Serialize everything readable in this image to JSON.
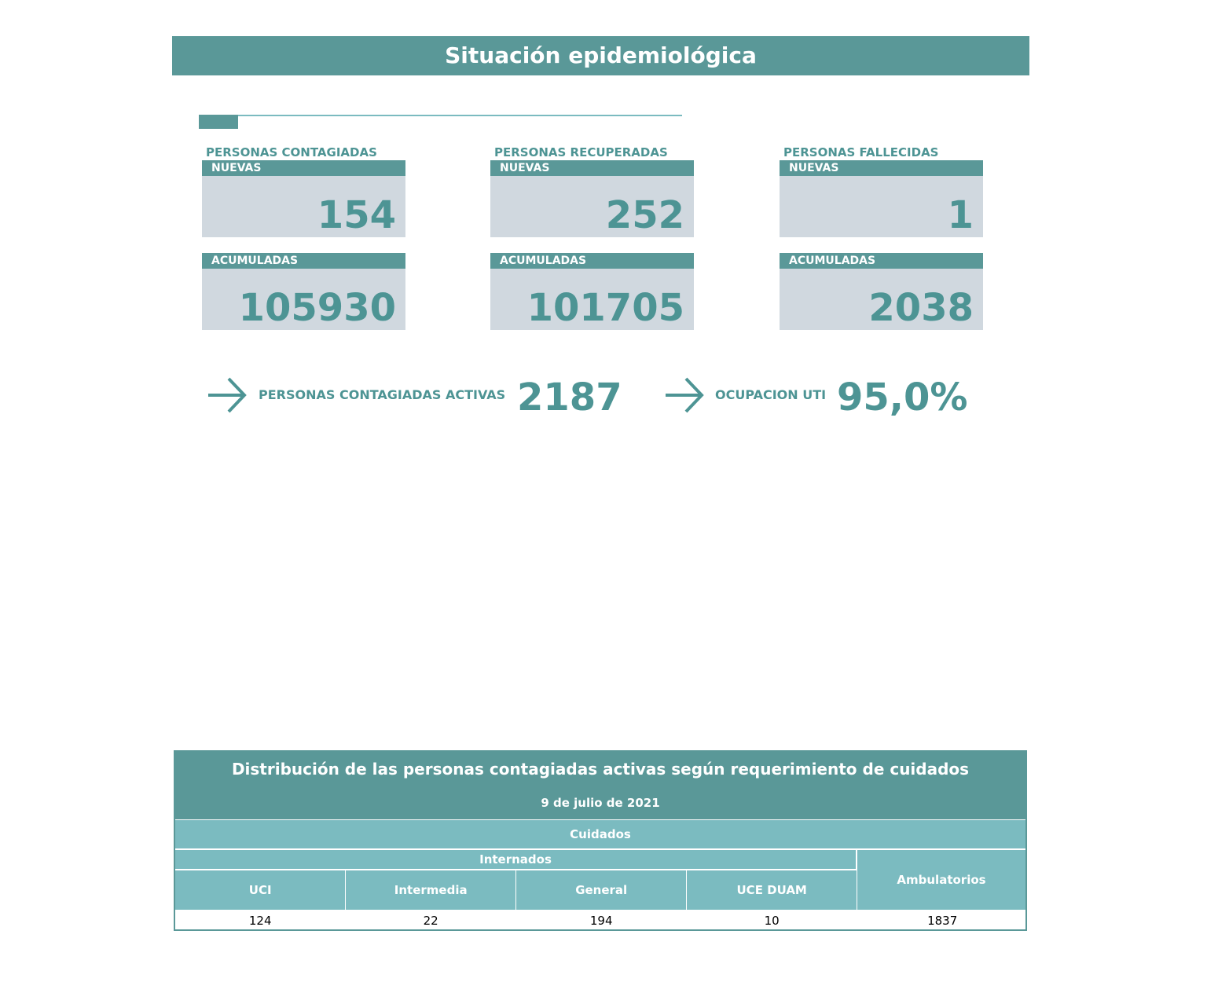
{
  "header": {
    "title": "Situación epidemiológica"
  },
  "cards": [
    {
      "title": "PERSONAS CONTAGIADAS",
      "new_label": "NUEVAS",
      "new": "154",
      "total_label": "ACUMULADAS",
      "total": "105930"
    },
    {
      "title": "PERSONAS RECUPERADAS",
      "new_label": "NUEVAS",
      "new": "252",
      "total_label": "ACUMULADAS",
      "total": "101705"
    },
    {
      "title": "PERSONAS FALLECIDAS",
      "new_label": "NUEVAS",
      "new": "1",
      "total_label": "ACUMULADAS",
      "total": "2038"
    }
  ],
  "summary": [
    {
      "label": "PERSONAS CONTAGIADAS ACTIVAS",
      "value": "2187"
    },
    {
      "label": "OCUPACION UTI",
      "value": "95,0%"
    }
  ],
  "table": {
    "title": "Distribución de las personas contagiadas activas según requerimiento de cuidados",
    "date": "9 de julio de 2021",
    "group": "Cuidados",
    "subgroup": "Internados",
    "columns": [
      "UCI",
      "Intermedia",
      "General",
      "UCE DUAM",
      "Ambulatorios"
    ],
    "rows": [
      [
        "124",
        "22",
        "194",
        "10",
        "1837"
      ]
    ]
  }
}
